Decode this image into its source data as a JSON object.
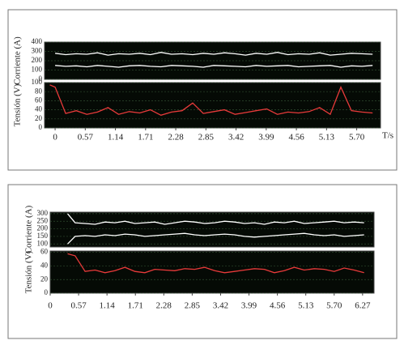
{
  "chart_data": [
    {
      "type": "line",
      "x_label": "T/s",
      "xlim": [
        -0.2,
        6.15
      ],
      "xticks": [
        0,
        0.57,
        1.14,
        1.71,
        2.28,
        2.85,
        3.42,
        3.99,
        4.56,
        5.13,
        {
          "value": 5.7,
          "label": "5.70"
        }
      ],
      "x": [
        -0.1,
        0,
        0.2,
        0.4,
        0.6,
        0.8,
        1.0,
        1.2,
        1.4,
        1.6,
        1.8,
        2.0,
        2.2,
        2.4,
        2.6,
        2.8,
        3.0,
        3.2,
        3.4,
        3.6,
        3.8,
        4.0,
        4.2,
        4.4,
        4.6,
        4.8,
        5.0,
        5.2,
        5.4,
        5.6,
        5.8,
        6.0
      ],
      "panels": [
        {
          "ylabel": "Corriente (A)",
          "ylim": [
            0,
            400
          ],
          "yticks": [
            0,
            100,
            200,
            300,
            400
          ],
          "grid": true,
          "series": [
            {
              "color": "#ffffff",
              "values": [
                null,
                280,
                265,
                275,
                270,
                285,
                260,
                275,
                270,
                280,
                265,
                290,
                270,
                275,
                265,
                280,
                270,
                285,
                275,
                260,
                280,
                270,
                290,
                265,
                275,
                270,
                285,
                260,
                270,
                280,
                275,
                270
              ]
            },
            {
              "color": "#ffffff",
              "values": [
                null,
                150,
                140,
                145,
                135,
                150,
                140,
                130,
                145,
                150,
                140,
                135,
                150,
                145,
                140,
                130,
                150,
                145,
                140,
                135,
                150,
                140,
                145,
                150,
                135,
                140,
                145,
                150,
                130,
                145,
                140,
                150
              ]
            }
          ]
        },
        {
          "ylabel": "Tensión (V)",
          "ylim": [
            0,
            100
          ],
          "yticks": [
            0,
            20,
            40,
            60,
            80,
            100
          ],
          "grid": true,
          "series": [
            {
              "color": "#e83a3a",
              "values": [
                95,
                90,
                32,
                38,
                30,
                35,
                45,
                30,
                36,
                33,
                40,
                28,
                35,
                38,
                55,
                32,
                36,
                40,
                30,
                34,
                38,
                42,
                30,
                35,
                33,
                36,
                45,
                30,
                90,
                38,
                35,
                33
              ]
            }
          ]
        }
      ]
    },
    {
      "type": "line",
      "xlim": [
        0,
        6.5
      ],
      "xticks": [
        0,
        0.57,
        1.14,
        1.71,
        2.28,
        2.85,
        3.42,
        3.99,
        4.56,
        5.13,
        {
          "value": 5.7,
          "label": "5.70"
        },
        6.27
      ],
      "x": [
        0.35,
        0.5,
        0.7,
        0.9,
        1.1,
        1.3,
        1.5,
        1.7,
        1.9,
        2.1,
        2.3,
        2.5,
        2.7,
        2.9,
        3.1,
        3.3,
        3.5,
        3.7,
        3.9,
        4.1,
        4.3,
        4.5,
        4.7,
        4.9,
        5.1,
        5.3,
        5.5,
        5.7,
        5.9,
        6.1,
        6.3
      ],
      "panels": [
        {
          "ylabel": "Corriente (A)",
          "ylim": [
            80,
            310
          ],
          "yticks": [
            100,
            150,
            200,
            250,
            300
          ],
          "grid": true,
          "series": [
            {
              "color": "#ffffff",
              "values": [
                300,
                240,
                235,
                230,
                245,
                240,
                250,
                235,
                240,
                245,
                230,
                240,
                250,
                245,
                235,
                240,
                250,
                245,
                235,
                240,
                230,
                245,
                240,
                250,
                235,
                240,
                245,
                250,
                240,
                245,
                240
              ]
            },
            {
              "color": "#ffffff",
              "values": [
                100,
                150,
                155,
                150,
                160,
                155,
                165,
                160,
                150,
                155,
                160,
                165,
                170,
                160,
                155,
                160,
                165,
                160,
                150,
                145,
                150,
                155,
                160,
                165,
                170,
                160,
                155,
                160,
                150,
                155,
                160
              ]
            }
          ]
        },
        {
          "ylabel": "Tensión (V)",
          "ylim": [
            0,
            62
          ],
          "yticks": [
            0,
            20,
            40,
            60
          ],
          "grid": true,
          "series": [
            {
              "color": "#e83a3a",
              "values": [
                58,
                55,
                32,
                34,
                30,
                33,
                38,
                32,
                30,
                35,
                34,
                33,
                36,
                35,
                38,
                33,
                30,
                32,
                34,
                36,
                35,
                30,
                33,
                38,
                34,
                36,
                35,
                32,
                37,
                34,
                30
              ]
            }
          ]
        }
      ]
    }
  ]
}
